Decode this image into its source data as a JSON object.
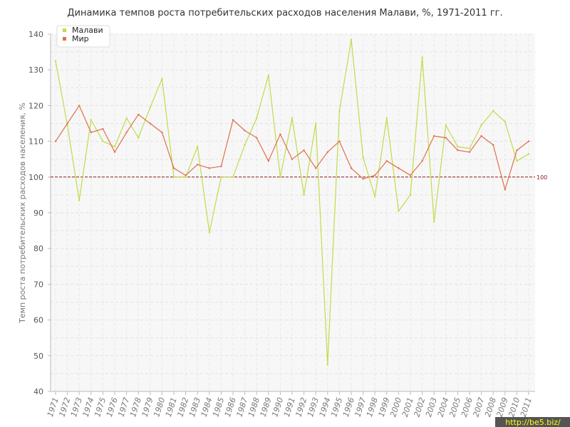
{
  "chart_data": {
    "type": "line",
    "title": "Динамика темпов роста потребительских расходов населения Малави, %, 1971-2011 гг.",
    "ylabel": "Темп роста потребительских расходов населения, %",
    "xlabel": "",
    "ylim": [
      40,
      140
    ],
    "yticks": [
      40,
      50,
      60,
      70,
      80,
      90,
      100,
      110,
      120,
      130,
      140
    ],
    "categories": [
      "1971",
      "1972",
      "1973",
      "1974",
      "1975",
      "1976",
      "1977",
      "1978",
      "1979",
      "1980",
      "1981",
      "1982",
      "1983",
      "1984",
      "1985",
      "1986",
      "1987",
      "1988",
      "1989",
      "1990",
      "1991",
      "1992",
      "1993",
      "1994",
      "1995",
      "1996",
      "1997",
      "1998",
      "1999",
      "2000",
      "2001",
      "2002",
      "2003",
      "2004",
      "2005",
      "2006",
      "2007",
      "2008",
      "2009",
      "2010",
      "2011"
    ],
    "series": [
      {
        "name": "Малави",
        "color": "#bfdc4a",
        "values": [
          132.5,
          114.5,
          93.5,
          116,
          110,
          108.5,
          116.5,
          111,
          119.5,
          127.5,
          100,
          100,
          108.5,
          84.5,
          100,
          100,
          109,
          116.5,
          128.5,
          100,
          116.5,
          95,
          115,
          47.5,
          118.5,
          138.5,
          105.5,
          94.5,
          116.5,
          90.5,
          95,
          133.5,
          87.5,
          114.5,
          108.5,
          108,
          114.5,
          118.5,
          115.5,
          104.5,
          106.5
        ]
      },
      {
        "name": "Мир",
        "color": "#e0704a",
        "values": [
          110,
          115,
          120,
          112.5,
          113.5,
          107,
          112.5,
          117.5,
          115,
          112.5,
          102.5,
          100.5,
          103.5,
          102.5,
          103,
          116,
          113,
          111,
          104.5,
          112,
          105,
          107.5,
          102.5,
          107,
          110,
          102.5,
          99.5,
          100.5,
          104.5,
          102.5,
          100.5,
          104.5,
          111.5,
          111,
          107.5,
          107,
          111.5,
          109,
          96.5,
          107.5,
          110
        ]
      }
    ],
    "reference_line": {
      "value": 100,
      "label": "100",
      "color": "#8a1c1c"
    },
    "legend": {
      "placement": "top-left"
    },
    "grid": true
  },
  "watermark": "http://be5.biz/"
}
